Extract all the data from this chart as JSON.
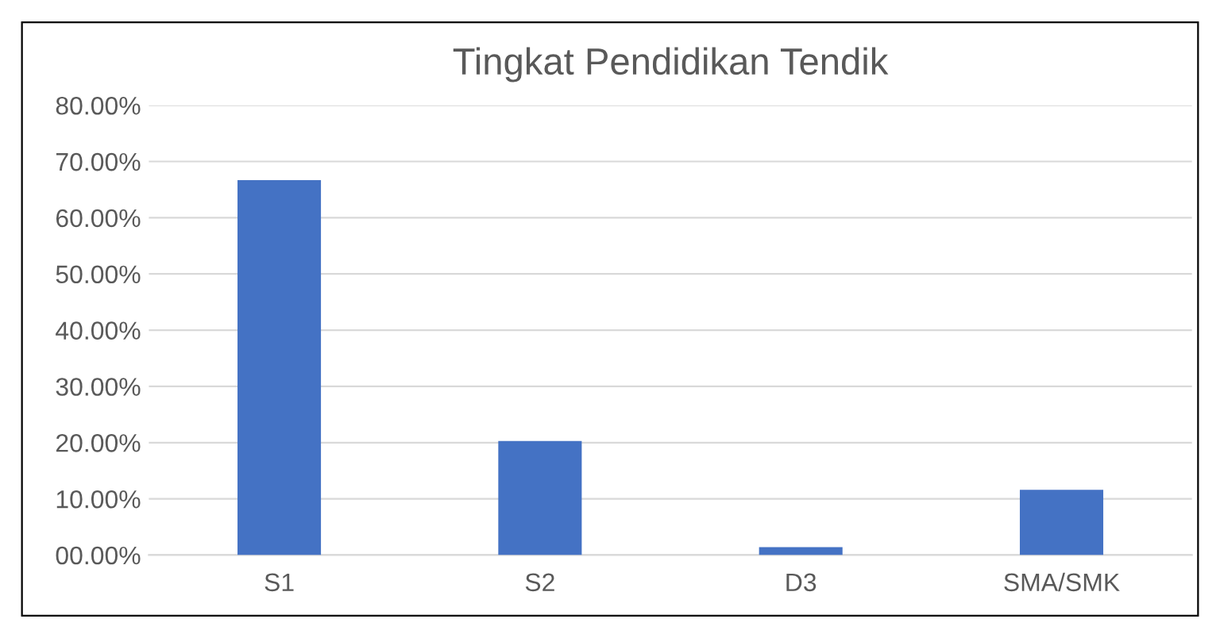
{
  "chart_data": {
    "type": "bar",
    "title": "Tingkat Pendidikan Tendik",
    "categories": [
      "S1",
      "S2",
      "D3",
      "SMA/SMK"
    ],
    "values": [
      66.7,
      20.3,
      1.4,
      11.6
    ],
    "color": "#4472c4",
    "ylim": [
      0,
      80
    ],
    "yticks": [
      {
        "value": 0,
        "label": "00.00%"
      },
      {
        "value": 10,
        "label": "10.00%"
      },
      {
        "value": 20,
        "label": "20.00%"
      },
      {
        "value": 30,
        "label": "30.00%"
      },
      {
        "value": 40,
        "label": "40.00%"
      },
      {
        "value": 50,
        "label": "50.00%"
      },
      {
        "value": 60,
        "label": "60.00%"
      },
      {
        "value": 70,
        "label": "70.00%"
      },
      {
        "value": 80,
        "label": "80.00%"
      }
    ],
    "grid": "y"
  }
}
